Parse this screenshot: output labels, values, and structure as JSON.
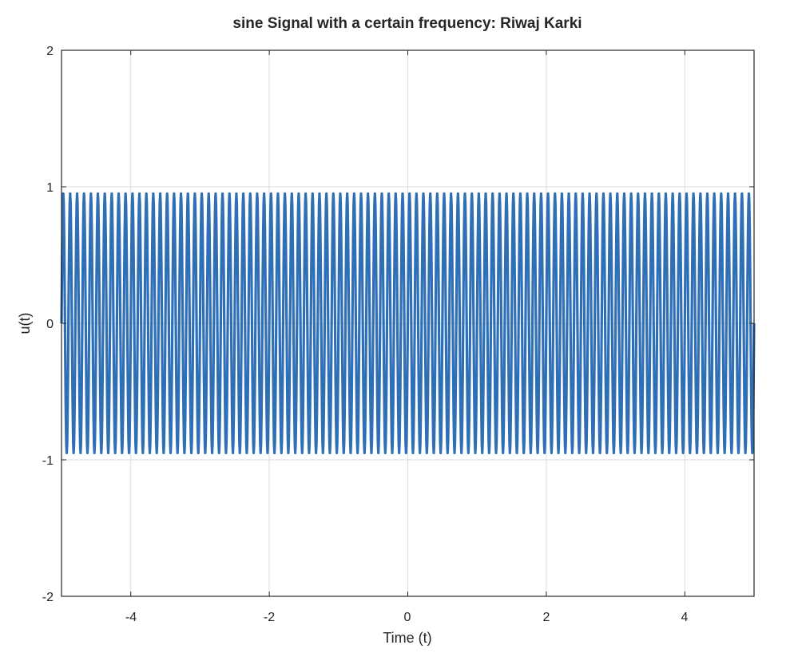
{
  "chart_data": {
    "type": "line",
    "title": "sine Signal with a certain frequency: Riwaj Karki",
    "xlabel": "Time (t)",
    "ylabel": "u(t)",
    "xlim": [
      -5,
      5
    ],
    "ylim": [
      -2,
      2
    ],
    "x_ticks": [
      "-4",
      "-2",
      "0",
      "2",
      "4"
    ],
    "y_ticks": [
      "2",
      "1",
      "0",
      "-1",
      "-2"
    ],
    "grid": true,
    "series": [
      {
        "color": "#2e6fb6",
        "amplitude": 0.95,
        "cycles_visible": 100,
        "x_range": [
          -5,
          5
        ]
      }
    ]
  }
}
